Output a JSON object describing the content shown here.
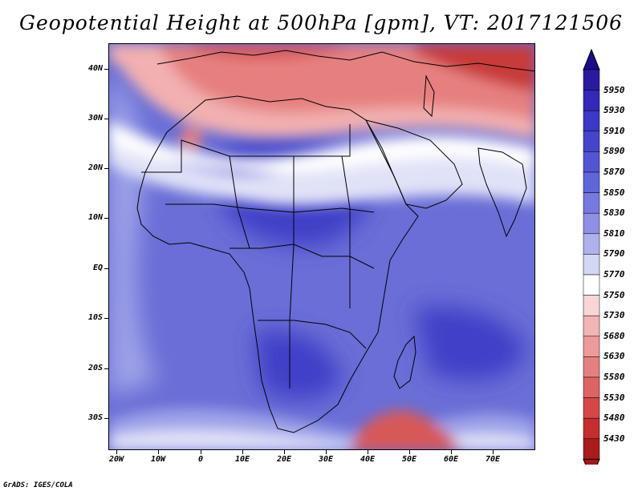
{
  "title": "Geopotential Height at 500hPa [gpm], VT: 2017121506",
  "footer": "GrADS: IGES/COLA",
  "colorbar": {
    "levels": [
      "5950",
      "5930",
      "5910",
      "5890",
      "5870",
      "5850",
      "5830",
      "5810",
      "5790",
      "5770",
      "5750",
      "5730",
      "5680",
      "5630",
      "5580",
      "5530",
      "5480",
      "5430"
    ],
    "colors": [
      "#2b1aa0",
      "#3328b8",
      "#3a38c4",
      "#4545cc",
      "#5255d3",
      "#6066da",
      "#7679e0",
      "#8e90e6",
      "#aeb1ee",
      "#d4d6f6",
      "#ffffff",
      "#f8d6d6",
      "#f2b4b4",
      "#ec9a9a",
      "#e58080",
      "#de6464",
      "#d44848",
      "#c42e2e",
      "#a81c1c"
    ],
    "top_arrow_color": "#1a0a8c",
    "bottom_arrow_color": "#a01818"
  },
  "axes": {
    "lat_labels": [
      "40N",
      "30N",
      "20N",
      "10N",
      "EQ",
      "10S",
      "20S",
      "30S"
    ],
    "lon_labels": [
      "20W",
      "10W",
      "0",
      "10E",
      "20E",
      "30E",
      "40E",
      "50E",
      "60E",
      "70E"
    ]
  },
  "map_colors": {
    "background_blue": "#6a6ed6",
    "deep_blue": "#4040c8",
    "light_blue": "#9ea2e8",
    "pale": "#e0e2f8",
    "white": "#ffffff",
    "light_red": "#f2b0b0",
    "mid_red": "#e68080",
    "red": "#d85858",
    "deep_red": "#c83a3a",
    "outline": "#000000"
  }
}
